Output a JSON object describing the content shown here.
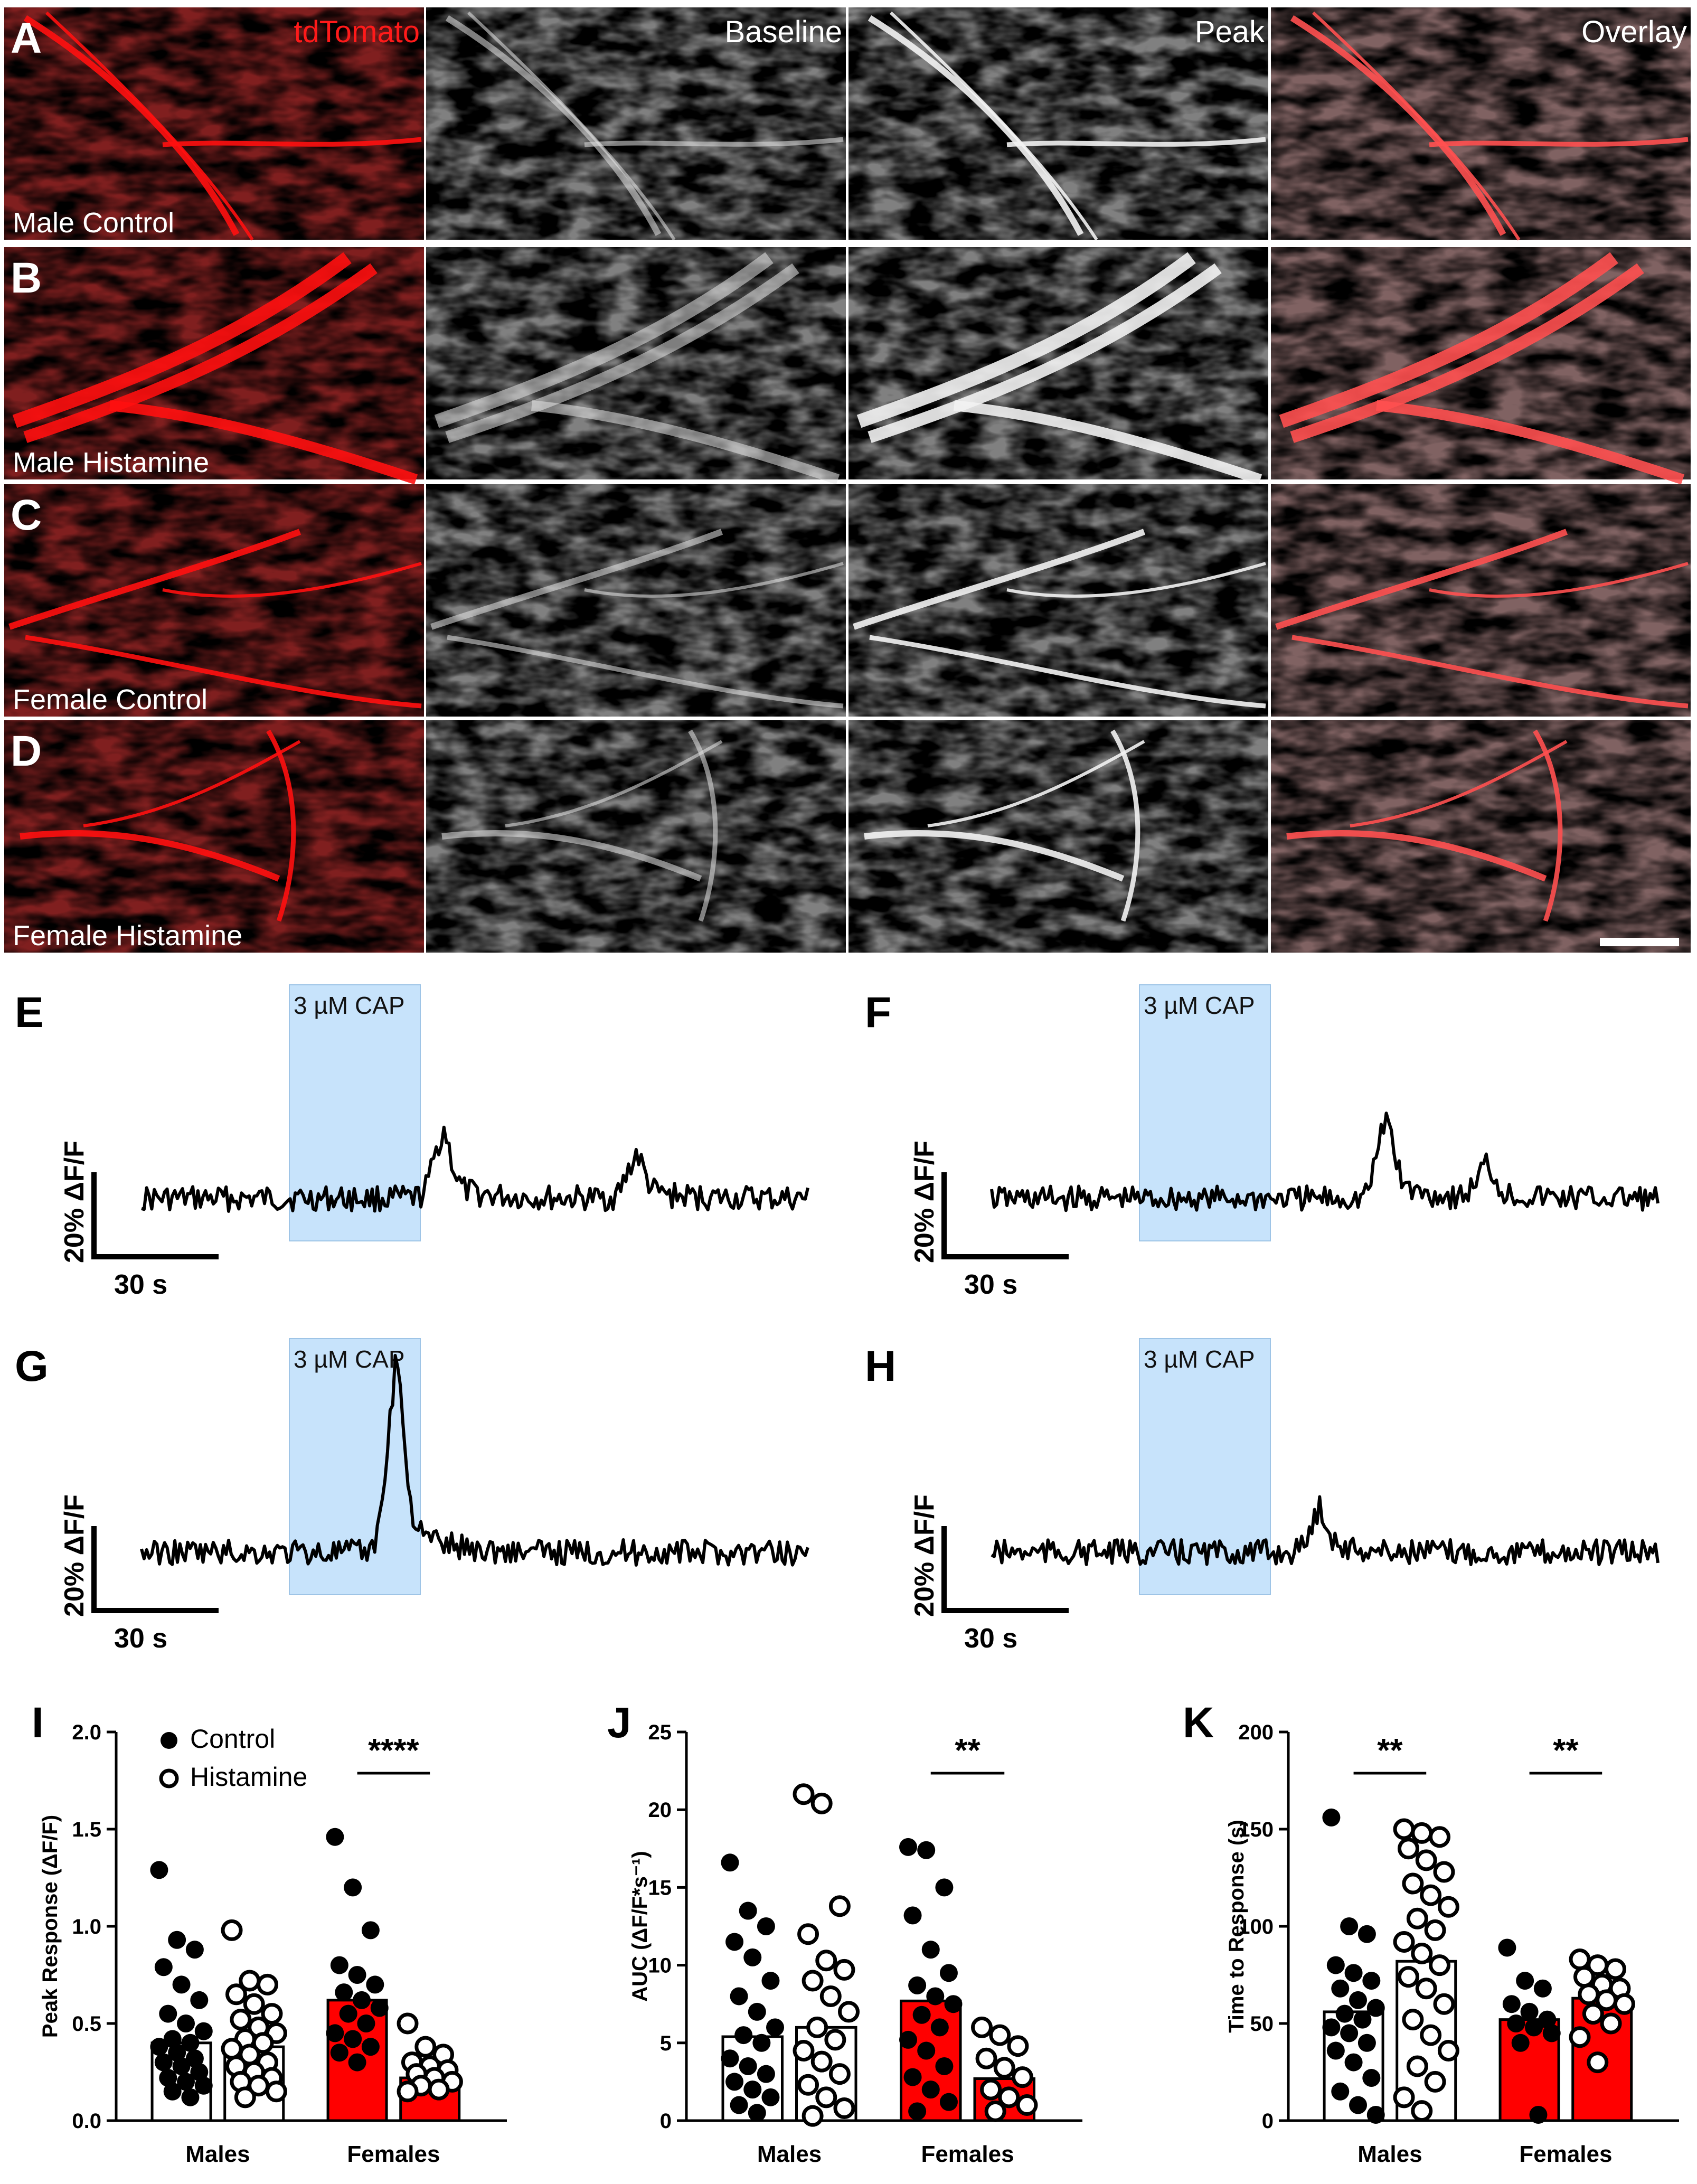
{
  "panel_labels": [
    "A",
    "B",
    "C",
    "D",
    "E",
    "F",
    "G",
    "H",
    "I",
    "J",
    "K"
  ],
  "columns": [
    {
      "label": "tdTomato",
      "color": "#ff1a1a"
    },
    {
      "label": "Baseline",
      "color": "#ffffff"
    },
    {
      "label": "Peak",
      "color": "#ffffff"
    },
    {
      "label": "Overlay",
      "color": "#ffffff"
    }
  ],
  "rows": [
    "Male Control",
    "Male Histamine",
    "Female Control",
    "Female Histamine"
  ],
  "traces": {
    "stimulus_label": "3 µM CAP",
    "scalebar_y": "20% ΔF/F",
    "scalebar_x": "30 s",
    "panels": [
      "E",
      "F",
      "G",
      "H"
    ]
  },
  "colors": {
    "control": "#ff0000",
    "trace": "#000000",
    "stimulus": "#c7e3fb"
  },
  "chart_data": [
    {
      "panel": "I",
      "type": "bar",
      "ylabel": "Peak Response (ΔF/F)",
      "ylim": [
        0,
        2.0
      ],
      "yticks": [
        "0.0",
        "0.5",
        "1.0",
        "1.5",
        "2.0"
      ],
      "categories": [
        "Males",
        "Females"
      ],
      "legend": [
        "Control",
        "Histamine"
      ],
      "significance": [
        {
          "group": "Females",
          "label": "****"
        }
      ],
      "series": [
        {
          "name": "Control",
          "values": [
            0.4,
            0.62
          ],
          "points": [
            [
              1.29,
              0.93,
              0.88,
              0.79,
              0.7,
              0.62,
              0.55,
              0.5,
              0.46,
              0.42,
              0.4,
              0.38,
              0.35,
              0.32,
              0.3,
              0.28,
              0.25,
              0.22,
              0.2,
              0.18,
              0.15,
              0.12
            ],
            [
              1.46,
              1.2,
              0.98,
              0.8,
              0.75,
              0.7,
              0.66,
              0.62,
              0.58,
              0.55,
              0.5,
              0.45,
              0.42,
              0.38,
              0.35,
              0.3
            ]
          ]
        },
        {
          "name": "Histamine",
          "values": [
            0.38,
            0.22
          ],
          "points": [
            [
              0.98,
              0.72,
              0.7,
              0.65,
              0.6,
              0.55,
              0.52,
              0.48,
              0.45,
              0.42,
              0.4,
              0.37,
              0.34,
              0.3,
              0.28,
              0.25,
              0.22,
              0.2,
              0.18,
              0.15,
              0.12
            ],
            [
              0.5,
              0.38,
              0.34,
              0.3,
              0.28,
              0.26,
              0.24,
              0.22,
              0.2,
              0.18,
              0.16,
              0.15
            ]
          ]
        }
      ]
    },
    {
      "panel": "J",
      "type": "bar",
      "ylabel": "AUC (ΔF/F*s⁻¹)",
      "ylim": [
        0,
        25
      ],
      "yticks": [
        "0",
        "5",
        "10",
        "15",
        "20",
        "25"
      ],
      "categories": [
        "Males",
        "Females"
      ],
      "significance": [
        {
          "group": "Females",
          "label": "**"
        }
      ],
      "series": [
        {
          "name": "Control",
          "values": [
            5.4,
            7.7
          ],
          "points": [
            [
              16.6,
              13.5,
              12.5,
              11.5,
              10.5,
              9.0,
              8.0,
              7.0,
              6.0,
              5.5,
              5.0,
              4.0,
              3.5,
              3.0,
              2.5,
              2.0,
              1.5,
              1.0,
              0.5
            ],
            [
              17.6,
              17.4,
              15.0,
              13.2,
              11.0,
              9.5,
              8.7,
              8.0,
              7.5,
              6.8,
              6.0,
              5.2,
              4.5,
              3.5,
              2.8,
              2.0,
              1.2,
              0.6
            ]
          ]
        },
        {
          "name": "Histamine",
          "values": [
            6.0,
            2.7
          ],
          "points": [
            [
              21.0,
              20.4,
              13.8,
              12.0,
              10.3,
              9.7,
              9.0,
              8.0,
              7.0,
              6.0,
              5.2,
              4.5,
              3.8,
              3.0,
              2.3,
              1.5,
              0.8,
              0.3
            ],
            [
              6.0,
              5.5,
              4.8,
              4.0,
              3.4,
              2.8,
              2.0,
              1.5,
              1.0,
              0.6
            ]
          ]
        }
      ]
    },
    {
      "panel": "K",
      "type": "bar",
      "ylabel": "Time to Response (s)",
      "ylim": [
        0,
        200
      ],
      "yticks": [
        "0",
        "50",
        "100",
        "150",
        "200"
      ],
      "categories": [
        "Males",
        "Females"
      ],
      "significance": [
        {
          "group": "Males",
          "label": "**"
        },
        {
          "group": "Females",
          "label": "**"
        }
      ],
      "series": [
        {
          "name": "Control",
          "values": [
            56,
            52
          ],
          "points": [
            [
              156,
              100,
              96,
              80,
              76,
              72,
              68,
              62,
              58,
              55,
              52,
              48,
              45,
              40,
              36,
              30,
              22,
              15,
              8,
              3
            ],
            [
              89,
              72,
              68,
              60,
              56,
              52,
              50,
              48,
              45,
              40,
              3
            ]
          ]
        },
        {
          "name": "Histamine",
          "values": [
            82,
            63
          ],
          "points": [
            [
              150,
              148,
              146,
              140,
              134,
              128,
              122,
              116,
              110,
              104,
              98,
              92,
              86,
              80,
              74,
              68,
              60,
              52,
              44,
              36,
              28,
              20,
              12,
              5
            ],
            [
              83,
              80,
              78,
              74,
              70,
              68,
              65,
              62,
              60,
              55,
              50,
              43,
              30
            ]
          ]
        }
      ]
    }
  ]
}
